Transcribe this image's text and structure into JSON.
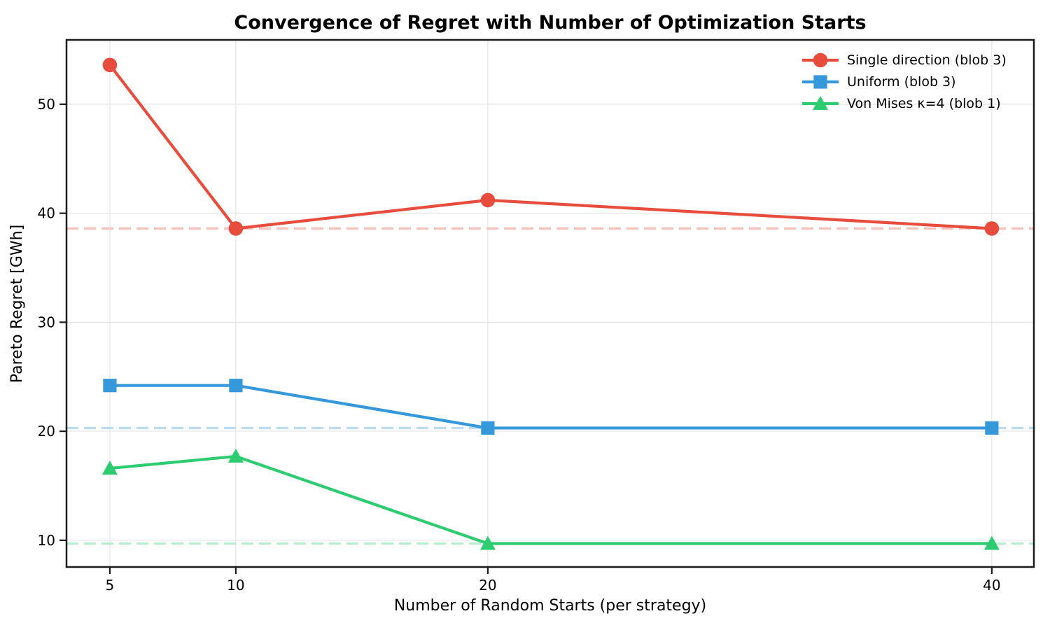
{
  "chart_data": {
    "type": "line",
    "title": "Convergence of Regret with Number of Optimization Starts",
    "xlabel": "Number of Random Starts (per strategy)",
    "ylabel": "Pareto Regret [GWh]",
    "x": [
      5,
      10,
      20,
      40
    ],
    "xticks": [
      5,
      10,
      20,
      40
    ],
    "yticks": [
      10,
      20,
      30,
      40,
      50
    ],
    "xlim": [
      3.28,
      41.67
    ],
    "ylim": [
      7.55,
      55.9
    ],
    "grid": true,
    "legend_position": "upper right",
    "legend_frame": false,
    "series": [
      {
        "name": "Single direction (blob 3)",
        "marker": "circle",
        "color": "#e74c3c",
        "values": [
          53.6,
          38.6,
          41.2,
          38.6
        ],
        "baseline": 38.6,
        "baseline_color": "#f5c1bb",
        "baseline_style": "dashed"
      },
      {
        "name": "Uniform (blob 3)",
        "marker": "square",
        "color": "#3498db",
        "values": [
          24.2,
          24.2,
          20.3,
          20.3
        ],
        "baseline": 20.3,
        "baseline_color": "#bcdcf2",
        "baseline_style": "dashed"
      },
      {
        "name": "Von Mises κ=4 (blob 1)",
        "marker": "triangle",
        "color": "#2ecc71",
        "values": [
          16.6,
          17.7,
          9.7,
          9.7
        ],
        "baseline": 9.7,
        "baseline_color": "#b8ecce",
        "baseline_style": "dashed"
      }
    ],
    "style": {
      "grid_color": "#e8e8e8",
      "spine_color": "#1c1c1c",
      "background": "#ffffff"
    }
  }
}
